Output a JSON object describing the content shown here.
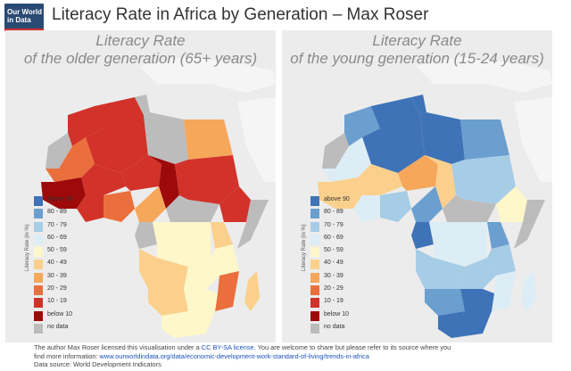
{
  "header": {
    "logo_lines": [
      "Our World",
      "in Data"
    ],
    "title": "Literacy Rate in Africa by Generation – Max Roser"
  },
  "panels": [
    {
      "title_line1": "Literacy Rate",
      "title_line2": "of the older generation (65+ years)"
    },
    {
      "title_line1": "Literacy Rate",
      "title_line2": "of the young generation (15-24 years)"
    }
  ],
  "legend": {
    "title": "Literacy Rate (in %)",
    "items": [
      {
        "label": "above 90",
        "color": "#3f73b8"
      },
      {
        "label": "80 - 89",
        "color": "#6a9fd0"
      },
      {
        "label": "70 - 79",
        "color": "#a7cce6"
      },
      {
        "label": "60 - 69",
        "color": "#dcedf5"
      },
      {
        "label": "50 - 59",
        "color": "#fdf7c9"
      },
      {
        "label": "40 - 49",
        "color": "#fbd08c"
      },
      {
        "label": "30 - 39",
        "color": "#f5a75a"
      },
      {
        "label": "20 - 29",
        "color": "#ea6f3c"
      },
      {
        "label": "10 - 19",
        "color": "#d2322a"
      },
      {
        "label": "below 10",
        "color": "#9e0a0a"
      },
      {
        "label": "no data",
        "color": "#bcbcbc"
      }
    ]
  },
  "footer": {
    "line1_pre": "The author Max Roser licensed this visualisation under a ",
    "license": "CC BY-SA license",
    "line1_post": ". You are welcome to share but please refer to its source where you",
    "line2_pre": "find more information: ",
    "link": "www.ourworldindata.org/data/economic-development-work-standard-of-living/trends-in-africa",
    "line3": "Data source: World Development Indicators"
  }
}
